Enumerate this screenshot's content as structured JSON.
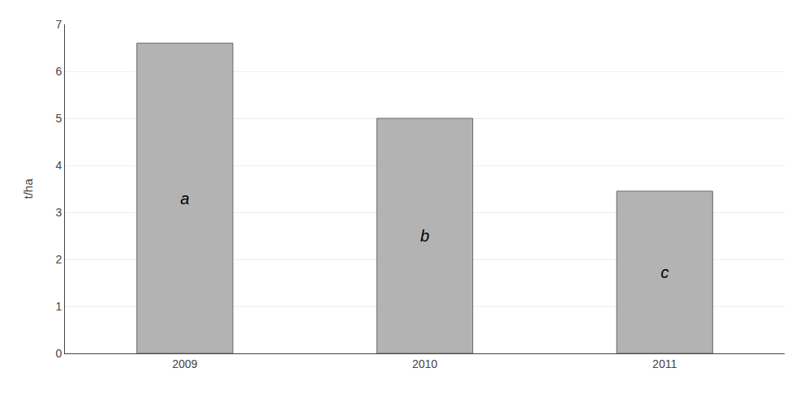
{
  "chart_data": {
    "type": "bar",
    "categories": [
      "2009",
      "2010",
      "2011"
    ],
    "values": [
      6.6,
      5.0,
      3.45
    ],
    "annotations": [
      "a",
      "b",
      "c"
    ],
    "color": "#b3b3b3",
    "ylabel": "t/ha",
    "ylim": [
      0,
      7
    ],
    "yticks": [
      0,
      1,
      2,
      3,
      4,
      5,
      6,
      7
    ],
    "grid": true
  }
}
